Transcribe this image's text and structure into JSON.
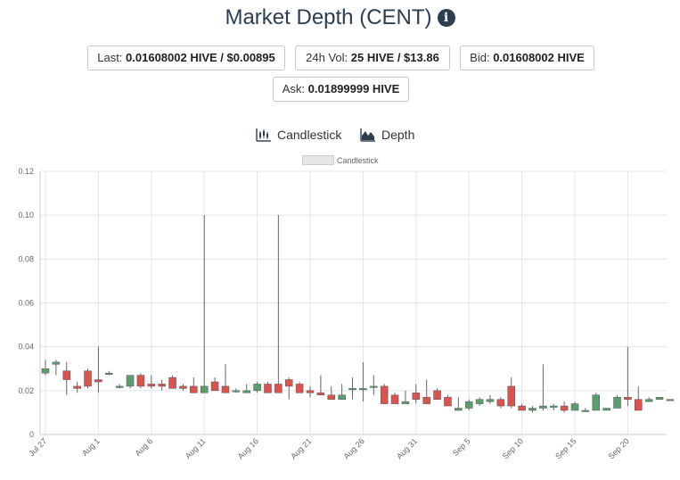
{
  "header": {
    "title": "Market Depth (CENT)",
    "info_icon": "info-circle-icon"
  },
  "stats": {
    "last_label": "Last:",
    "last_value": "0.01608002 HIVE / $0.00895",
    "vol_label": "24h Vol:",
    "vol_value": "25 HIVE / $13.86",
    "bid_label": "Bid:",
    "bid_value": "0.01608002 HIVE",
    "ask_label": "Ask:",
    "ask_value": "0.01899999 HIVE"
  },
  "toggles": {
    "candlestick_label": "Candlestick",
    "candlestick_icon": "candlestick-chart-icon",
    "depth_label": "Depth",
    "depth_icon": "area-chart-icon"
  },
  "colors": {
    "up": "#5a9e6f",
    "down": "#d9534f",
    "wick": "#666666",
    "grid": "#e5e5e5"
  },
  "chart_data": {
    "type": "candlestick",
    "legend": [
      "Candlestick"
    ],
    "legend_position": "top",
    "grid": true,
    "x_start": "Jul 27",
    "xticks": [
      "Jul 27",
      "Aug 1",
      "Aug 6",
      "Aug 11",
      "Aug 16",
      "Aug 21",
      "Aug 26",
      "Aug 31",
      "Sep 5",
      "Sep 10",
      "Sep 15",
      "Sep 20"
    ],
    "yticks": [
      "0",
      "0.02",
      "0.04",
      "0.06",
      "0.08",
      "0.10",
      "0.12"
    ],
    "ylim": [
      0,
      0.12
    ],
    "candles": [
      {
        "date": "Jul 27",
        "open": 0.028,
        "high": 0.034,
        "low": 0.027,
        "close": 0.03
      },
      {
        "date": "Jul 28",
        "open": 0.032,
        "high": 0.034,
        "low": 0.027,
        "close": 0.033
      },
      {
        "date": "Jul 29",
        "open": 0.029,
        "high": 0.033,
        "low": 0.018,
        "close": 0.025
      },
      {
        "date": "Jul 30",
        "open": 0.022,
        "high": 0.024,
        "low": 0.019,
        "close": 0.021
      },
      {
        "date": "Jul 31",
        "open": 0.029,
        "high": 0.03,
        "low": 0.021,
        "close": 0.022
      },
      {
        "date": "Aug 1",
        "open": 0.025,
        "high": 0.04,
        "low": 0.019,
        "close": 0.024
      },
      {
        "date": "Aug 2",
        "open": 0.028,
        "high": 0.029,
        "low": 0.027,
        "close": 0.028
      },
      {
        "date": "Aug 3",
        "open": 0.022,
        "high": 0.023,
        "low": 0.021,
        "close": 0.022
      },
      {
        "date": "Aug 4",
        "open": 0.022,
        "high": 0.027,
        "low": 0.021,
        "close": 0.027
      },
      {
        "date": "Aug 5",
        "open": 0.027,
        "high": 0.028,
        "low": 0.021,
        "close": 0.022
      },
      {
        "date": "Aug 6",
        "open": 0.023,
        "high": 0.027,
        "low": 0.021,
        "close": 0.022
      },
      {
        "date": "Aug 7",
        "open": 0.023,
        "high": 0.025,
        "low": 0.02,
        "close": 0.022
      },
      {
        "date": "Aug 8",
        "open": 0.026,
        "high": 0.027,
        "low": 0.021,
        "close": 0.021
      },
      {
        "date": "Aug 9",
        "open": 0.022,
        "high": 0.023,
        "low": 0.02,
        "close": 0.021
      },
      {
        "date": "Aug 10",
        "open": 0.022,
        "high": 0.026,
        "low": 0.019,
        "close": 0.019
      },
      {
        "date": "Aug 11",
        "open": 0.019,
        "high": 0.1,
        "low": 0.019,
        "close": 0.022
      },
      {
        "date": "Aug 12",
        "open": 0.024,
        "high": 0.026,
        "low": 0.02,
        "close": 0.02
      },
      {
        "date": "Aug 13",
        "open": 0.022,
        "high": 0.032,
        "low": 0.019,
        "close": 0.019
      },
      {
        "date": "Aug 14",
        "open": 0.02,
        "high": 0.021,
        "low": 0.019,
        "close": 0.02
      },
      {
        "date": "Aug 15",
        "open": 0.019,
        "high": 0.023,
        "low": 0.019,
        "close": 0.02
      },
      {
        "date": "Aug 16",
        "open": 0.02,
        "high": 0.024,
        "low": 0.019,
        "close": 0.023
      },
      {
        "date": "Aug 17",
        "open": 0.023,
        "high": 0.024,
        "low": 0.019,
        "close": 0.019
      },
      {
        "date": "Aug 18",
        "open": 0.023,
        "high": 0.1,
        "low": 0.019,
        "close": 0.019
      },
      {
        "date": "Aug 19",
        "open": 0.025,
        "high": 0.026,
        "low": 0.016,
        "close": 0.022
      },
      {
        "date": "Aug 20",
        "open": 0.023,
        "high": 0.024,
        "low": 0.019,
        "close": 0.019
      },
      {
        "date": "Aug 21",
        "open": 0.02,
        "high": 0.022,
        "low": 0.017,
        "close": 0.019
      },
      {
        "date": "Aug 22",
        "open": 0.019,
        "high": 0.027,
        "low": 0.018,
        "close": 0.018
      },
      {
        "date": "Aug 23",
        "open": 0.018,
        "high": 0.022,
        "low": 0.016,
        "close": 0.016
      },
      {
        "date": "Aug 24",
        "open": 0.016,
        "high": 0.023,
        "low": 0.016,
        "close": 0.018
      },
      {
        "date": "Aug 25",
        "open": 0.021,
        "high": 0.026,
        "low": 0.016,
        "close": 0.021
      },
      {
        "date": "Aug 26",
        "open": 0.021,
        "high": 0.033,
        "low": 0.015,
        "close": 0.021
      },
      {
        "date": "Aug 27",
        "open": 0.022,
        "high": 0.027,
        "low": 0.018,
        "close": 0.022
      },
      {
        "date": "Aug 28",
        "open": 0.022,
        "high": 0.023,
        "low": 0.014,
        "close": 0.014
      },
      {
        "date": "Aug 29",
        "open": 0.018,
        "high": 0.019,
        "low": 0.014,
        "close": 0.014
      },
      {
        "date": "Aug 30",
        "open": 0.014,
        "high": 0.02,
        "low": 0.014,
        "close": 0.015
      },
      {
        "date": "Aug 31",
        "open": 0.019,
        "high": 0.023,
        "low": 0.014,
        "close": 0.016
      },
      {
        "date": "Sep 1",
        "open": 0.017,
        "high": 0.025,
        "low": 0.014,
        "close": 0.014
      },
      {
        "date": "Sep 2",
        "open": 0.02,
        "high": 0.021,
        "low": 0.016,
        "close": 0.016
      },
      {
        "date": "Sep 3",
        "open": 0.017,
        "high": 0.018,
        "low": 0.013,
        "close": 0.013
      },
      {
        "date": "Sep 4",
        "open": 0.011,
        "high": 0.017,
        "low": 0.011,
        "close": 0.012
      },
      {
        "date": "Sep 5",
        "open": 0.012,
        "high": 0.016,
        "low": 0.011,
        "close": 0.015
      },
      {
        "date": "Sep 6",
        "open": 0.014,
        "high": 0.017,
        "low": 0.013,
        "close": 0.016
      },
      {
        "date": "Sep 7",
        "open": 0.015,
        "high": 0.018,
        "low": 0.014,
        "close": 0.016
      },
      {
        "date": "Sep 8",
        "open": 0.016,
        "high": 0.017,
        "low": 0.012,
        "close": 0.013
      },
      {
        "date": "Sep 9",
        "open": 0.022,
        "high": 0.026,
        "low": 0.012,
        "close": 0.013
      },
      {
        "date": "Sep 10",
        "open": 0.013,
        "high": 0.014,
        "low": 0.011,
        "close": 0.011
      },
      {
        "date": "Sep 11",
        "open": 0.011,
        "high": 0.013,
        "low": 0.01,
        "close": 0.012
      },
      {
        "date": "Sep 12",
        "open": 0.012,
        "high": 0.032,
        "low": 0.011,
        "close": 0.013
      },
      {
        "date": "Sep 13",
        "open": 0.013,
        "high": 0.014,
        "low": 0.011,
        "close": 0.013
      },
      {
        "date": "Sep 14",
        "open": 0.013,
        "high": 0.015,
        "low": 0.01,
        "close": 0.011
      },
      {
        "date": "Sep 15",
        "open": 0.011,
        "high": 0.015,
        "low": 0.011,
        "close": 0.014
      },
      {
        "date": "Sep 16",
        "open": 0.011,
        "high": 0.012,
        "low": 0.011,
        "close": 0.011
      },
      {
        "date": "Sep 17",
        "open": 0.011,
        "high": 0.019,
        "low": 0.011,
        "close": 0.018
      },
      {
        "date": "Sep 18",
        "open": 0.011,
        "high": 0.012,
        "low": 0.011,
        "close": 0.012
      },
      {
        "date": "Sep 19",
        "open": 0.012,
        "high": 0.018,
        "low": 0.012,
        "close": 0.017
      },
      {
        "date": "Sep 20",
        "open": 0.017,
        "high": 0.04,
        "low": 0.013,
        "close": 0.016
      },
      {
        "date": "Sep 21",
        "open": 0.016,
        "high": 0.022,
        "low": 0.011,
        "close": 0.011
      },
      {
        "date": "Sep 22",
        "open": 0.015,
        "high": 0.017,
        "low": 0.015,
        "close": 0.016
      },
      {
        "date": "Sep 23",
        "open": 0.016,
        "high": 0.017,
        "low": 0.016,
        "close": 0.017
      },
      {
        "date": "Sep 24",
        "open": 0.016,
        "high": 0.016,
        "low": 0.016,
        "close": 0.016
      }
    ]
  }
}
